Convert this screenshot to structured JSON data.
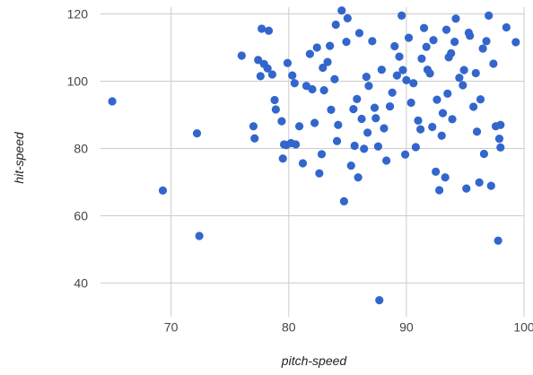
{
  "chart_data": {
    "type": "scatter",
    "title": "",
    "xlabel": "pitch-speed",
    "ylabel": "hit-speed",
    "xlim": [
      64,
      100
    ],
    "ylim": [
      30,
      122
    ],
    "xticks": [
      70,
      80,
      90,
      100
    ],
    "yticks": [
      40,
      60,
      80,
      100,
      120
    ],
    "grid": true,
    "legend": "none",
    "point_color": "#3366cc",
    "series": [
      {
        "points": [
          [
            65.0,
            94.0
          ],
          [
            69.3,
            67.5
          ],
          [
            72.2,
            84.5
          ],
          [
            72.4,
            54.0
          ],
          [
            76.0,
            107.6
          ],
          [
            77.0,
            86.6
          ],
          [
            77.1,
            83.0
          ],
          [
            77.4,
            106.3
          ],
          [
            77.6,
            101.5
          ],
          [
            77.7,
            115.6
          ],
          [
            77.9,
            105.1
          ],
          [
            78.2,
            103.8
          ],
          [
            78.6,
            102.0
          ],
          [
            78.8,
            94.4
          ],
          [
            78.9,
            91.6
          ],
          [
            78.3,
            115.0
          ],
          [
            79.5,
            77.0
          ],
          [
            79.6,
            81.2
          ],
          [
            79.8,
            81.0
          ],
          [
            79.9,
            105.4
          ],
          [
            80.2,
            81.6
          ],
          [
            80.3,
            101.7
          ],
          [
            80.5,
            99.4
          ],
          [
            80.6,
            81.2
          ],
          [
            80.9,
            86.6
          ],
          [
            81.2,
            75.6
          ],
          [
            81.5,
            98.6
          ],
          [
            82.0,
            97.6
          ],
          [
            82.2,
            87.6
          ],
          [
            82.4,
            110.0
          ],
          [
            82.6,
            72.6
          ],
          [
            82.8,
            78.3
          ],
          [
            83.0,
            97.3
          ],
          [
            83.3,
            105.7
          ],
          [
            83.6,
            91.5
          ],
          [
            83.9,
            100.6
          ],
          [
            84.1,
            82.2
          ],
          [
            84.2,
            87.0
          ],
          [
            84.5,
            121.0
          ],
          [
            84.7,
            64.3
          ],
          [
            84.9,
            111.7
          ],
          [
            85.0,
            118.7
          ],
          [
            85.3,
            74.9
          ],
          [
            85.5,
            91.7
          ],
          [
            85.8,
            94.7
          ],
          [
            85.9,
            71.4
          ],
          [
            86.2,
            88.8
          ],
          [
            86.4,
            79.9
          ],
          [
            86.6,
            101.3
          ],
          [
            86.7,
            84.7
          ],
          [
            87.1,
            111.9
          ],
          [
            87.3,
            92.1
          ],
          [
            87.6,
            80.6
          ],
          [
            87.7,
            34.9
          ],
          [
            87.9,
            103.4
          ],
          [
            88.3,
            76.4
          ],
          [
            88.6,
            92.5
          ],
          [
            88.8,
            96.6
          ],
          [
            89.2,
            101.7
          ],
          [
            89.4,
            107.3
          ],
          [
            89.6,
            119.5
          ],
          [
            89.9,
            78.2
          ],
          [
            90.2,
            112.9
          ],
          [
            90.6,
            99.4
          ],
          [
            90.8,
            80.4
          ],
          [
            91.0,
            88.3
          ],
          [
            91.3,
            106.7
          ],
          [
            91.5,
            115.8
          ],
          [
            91.8,
            103.4
          ],
          [
            92.0,
            102.3
          ],
          [
            92.2,
            86.4
          ],
          [
            92.5,
            73.1
          ],
          [
            92.8,
            67.6
          ],
          [
            93.0,
            83.8
          ],
          [
            93.3,
            71.4
          ],
          [
            93.4,
            115.3
          ],
          [
            93.5,
            96.3
          ],
          [
            93.8,
            108.3
          ],
          [
            94.2,
            118.6
          ],
          [
            94.5,
            101.0
          ],
          [
            94.8,
            98.8
          ],
          [
            95.1,
            68.1
          ],
          [
            95.4,
            113.5
          ],
          [
            95.7,
            92.4
          ],
          [
            96.0,
            85.0
          ],
          [
            96.2,
            69.9
          ],
          [
            96.5,
            109.7
          ],
          [
            96.8,
            111.9
          ],
          [
            97.0,
            119.5
          ],
          [
            97.2,
            68.9
          ],
          [
            97.6,
            86.6
          ],
          [
            97.8,
            52.6
          ],
          [
            98.0,
            80.3
          ],
          [
            98.5,
            116.0
          ],
          [
            99.3,
            111.6
          ],
          [
            81.8,
            108.1
          ],
          [
            82.9,
            104.0
          ],
          [
            83.5,
            110.5
          ],
          [
            85.6,
            80.8
          ],
          [
            86.8,
            98.6
          ],
          [
            88.1,
            86.0
          ],
          [
            89.0,
            110.4
          ],
          [
            90.4,
            93.6
          ],
          [
            91.7,
            110.2
          ],
          [
            92.6,
            94.5
          ],
          [
            93.9,
            88.7
          ],
          [
            94.9,
            103.3
          ],
          [
            95.9,
            102.4
          ],
          [
            96.6,
            78.4
          ],
          [
            97.4,
            105.2
          ],
          [
            79.4,
            88.1
          ],
          [
            84.0,
            116.8
          ],
          [
            86.0,
            114.3
          ],
          [
            87.4,
            89.0
          ],
          [
            90.0,
            100.3
          ],
          [
            92.3,
            112.2
          ],
          [
            93.1,
            90.5
          ],
          [
            94.1,
            111.7
          ],
          [
            95.3,
            114.4
          ],
          [
            96.3,
            94.6
          ],
          [
            97.9,
            82.9
          ],
          [
            98.0,
            87.0
          ],
          [
            91.2,
            85.7
          ],
          [
            93.6,
            107.1
          ],
          [
            89.7,
            103.3
          ]
        ]
      }
    ]
  }
}
